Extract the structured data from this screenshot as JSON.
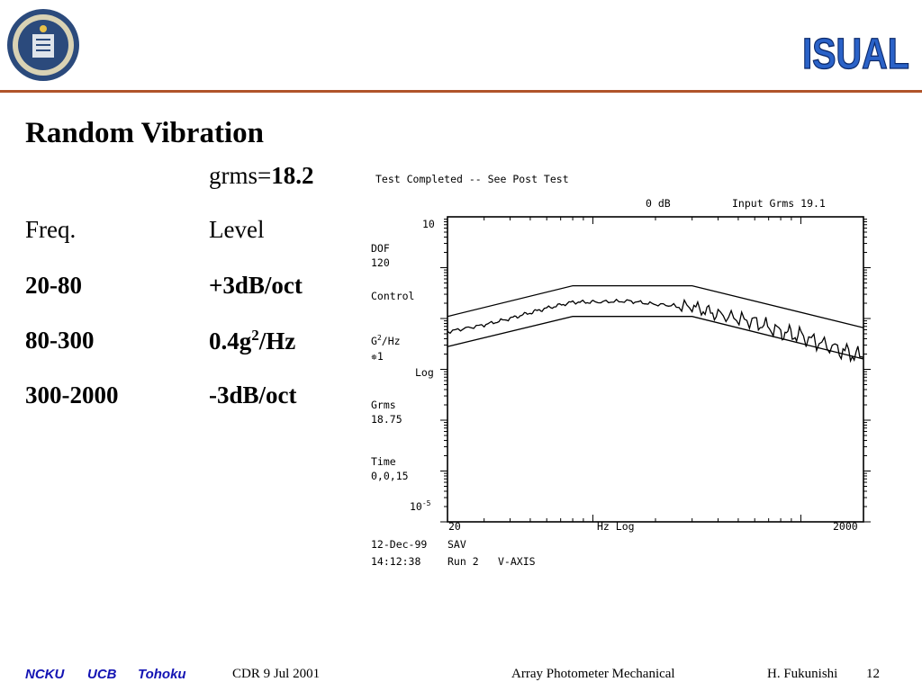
{
  "slide": {
    "title": "Random Vibration",
    "grms_label": "grms=",
    "grms_value": "18.2",
    "table": {
      "headers": [
        "Freq.",
        "Level"
      ],
      "rows": [
        {
          "freq": "20-80",
          "level": "+3dB/oct"
        },
        {
          "freq": "80-300",
          "level_base": "0.4g",
          "level_sup": "2",
          "level_tail": "/Hz"
        },
        {
          "freq": "300-2000",
          "level": "-3dB/oct"
        }
      ]
    },
    "logo_text": "ISUAL",
    "seal_text": "THE UNIVERSITY OF CALIFORNIA SEAL 1868"
  },
  "chart_data": {
    "type": "line",
    "header": "Test Completed -- See Post Test",
    "db_label": "0 dB",
    "input_grms": "Input Grms  19.1",
    "side_labels": {
      "dof_label": "DOF",
      "dof_value": "120",
      "control": "Control",
      "units_base": "G",
      "units_sup": "2",
      "units_tail": "/Hz",
      "units_id": "✵1",
      "scale": "Log",
      "grms_label": "Grms",
      "grms_value": "18.75",
      "time_label": "Time",
      "time_value": "0,0,15"
    },
    "y_top_label": "10",
    "y_bottom_label": "10",
    "y_bottom_exp": "-5",
    "x_left_label": "20",
    "x_right_label": "2000",
    "x_axis_label": "Hz  Log",
    "footer": {
      "date": "12-Dec-99",
      "code": "SAV",
      "time": "14:12:38",
      "run": "Run 2",
      "axis": "V-AXIS"
    },
    "x_scale": "log",
    "y_scale": "log",
    "xlim": [
      20,
      2000
    ],
    "ylim": [
      1e-05,
      10
    ],
    "series": [
      {
        "role": "upper-tolerance",
        "x": [
          20,
          80,
          300,
          2000
        ],
        "y": [
          0.11,
          0.44,
          0.44,
          0.066
        ]
      },
      {
        "role": "control",
        "x": [
          20,
          30,
          40,
          50,
          60,
          80,
          100,
          150,
          200,
          300,
          400,
          600,
          800,
          1000,
          1500,
          2000
        ],
        "y": [
          0.055,
          0.075,
          0.1,
          0.13,
          0.16,
          0.21,
          0.21,
          0.22,
          0.19,
          0.17,
          0.12,
          0.085,
          0.055,
          0.045,
          0.025,
          0.017
        ]
      },
      {
        "role": "lower-tolerance",
        "x": [
          20,
          80,
          300,
          2000
        ],
        "y": [
          0.028,
          0.11,
          0.11,
          0.016
        ]
      }
    ]
  },
  "footer": {
    "org1": "NCKU",
    "org2": "UCB",
    "org3": "Tohoku",
    "event": "CDR  9 Jul 2001",
    "topic": "Array Photometer Mechanical",
    "author": "H. Fukunishi",
    "page": "12"
  }
}
